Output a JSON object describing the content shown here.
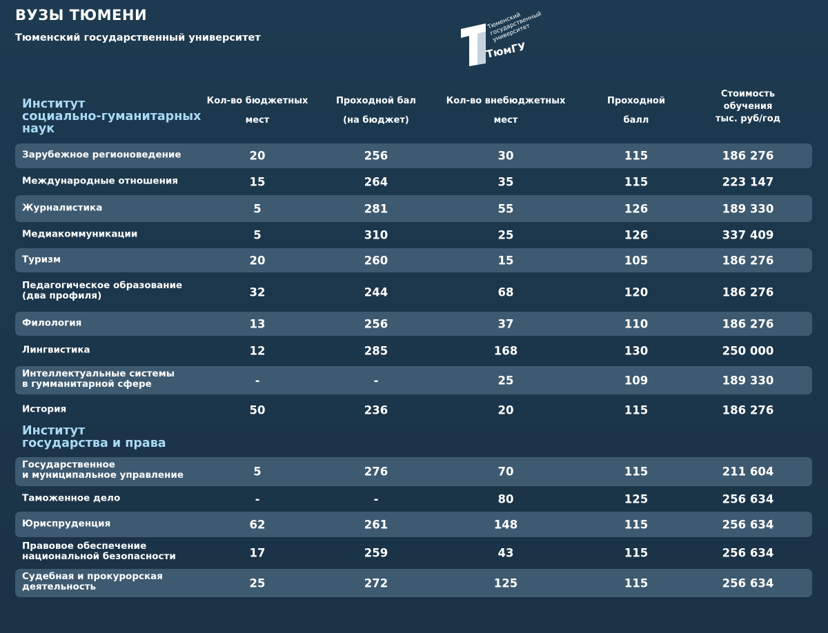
{
  "header": {
    "title": "ВУЗЫ ТЮМЕНИ",
    "subtitle": "Тюменский государственный университет"
  },
  "logo": {
    "lines": [
      "Тюменский",
      "государственный",
      "университет"
    ],
    "abbr": "ТюмГУ"
  },
  "table": {
    "columns": [
      [
        "Кол-во бюджетных",
        "мест"
      ],
      [
        "Проходной бал",
        "(на бюджет)"
      ],
      [
        "Кол-во внебюджетных",
        "мест"
      ],
      [
        "Проходной",
        "балл"
      ],
      [
        "Стоимость",
        "обучения",
        "тыс. руб/год"
      ]
    ],
    "sections": [
      {
        "title": [
          "Институт",
          "социально-гуманитарных",
          "наук"
        ],
        "rows": [
          {
            "name": [
              "Зарубежное регионоведение"
            ],
            "cells": [
              "20",
              "256",
              "30",
              "115",
              "186 276"
            ]
          },
          {
            "name": [
              "Международные отношения"
            ],
            "cells": [
              "15",
              "264",
              "35",
              "115",
              "223 147"
            ]
          },
          {
            "name": [
              "Журналистика"
            ],
            "cells": [
              "5",
              "281",
              "55",
              "126",
              "189 330"
            ]
          },
          {
            "name": [
              "Медиакоммуникации"
            ],
            "cells": [
              "5",
              "310",
              "25",
              "126",
              "337 409"
            ]
          },
          {
            "name": [
              "Туризм"
            ],
            "cells": [
              "20",
              "260",
              "15",
              "105",
              "186 276"
            ]
          },
          {
            "name": [
              "Педагогическое образование",
              "(два профиля)"
            ],
            "cells": [
              "32",
              "244",
              "68",
              "120",
              "186 276"
            ]
          },
          {
            "name": [
              "Филология"
            ],
            "cells": [
              "13",
              "256",
              "37",
              "110",
              "186 276"
            ]
          },
          {
            "name": [
              "Лингвистика"
            ],
            "cells": [
              "12",
              "285",
              "168",
              "130",
              "250 000"
            ]
          },
          {
            "name": [
              "Интеллектуальные системы",
              "в гумманитарной сфере"
            ],
            "cells": [
              "-",
              "-",
              "25",
              "109",
              "189 330"
            ]
          },
          {
            "name": [
              "История"
            ],
            "cells": [
              "50",
              "236",
              "20",
              "115",
              "186 276"
            ]
          }
        ]
      },
      {
        "title": [
          "Институт",
          "государства и права"
        ],
        "rows": [
          {
            "name": [
              "Государственное",
              "и муниципальное управление"
            ],
            "cells": [
              "5",
              "276",
              "70",
              "115",
              "211 604"
            ]
          },
          {
            "name": [
              "Таможенное дело"
            ],
            "cells": [
              "-",
              "-",
              "80",
              "125",
              "256 634"
            ]
          },
          {
            "name": [
              "Юриспруденция"
            ],
            "cells": [
              "62",
              "261",
              "148",
              "115",
              "256 634"
            ]
          },
          {
            "name": [
              "Правовое обеспечение",
              "национальной безопасности"
            ],
            "cells": [
              "17",
              "259",
              "43",
              "115",
              "256 634"
            ]
          },
          {
            "name": [
              "Судебная и прокурорская",
              "деятельность"
            ],
            "cells": [
              "25",
              "272",
              "125",
              "115",
              "256 634"
            ]
          }
        ]
      }
    ]
  }
}
